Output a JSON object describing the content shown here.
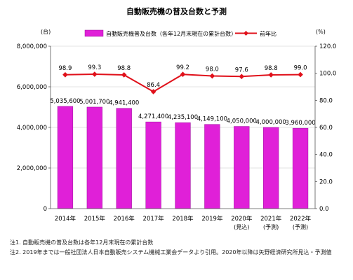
{
  "chart_data": {
    "type": "bar+line",
    "title": "自動販売機の普及台数と予測",
    "left_unit": "(台)",
    "right_unit": "(%)",
    "categories": [
      {
        "label": "2014年",
        "sub": ""
      },
      {
        "label": "2015年",
        "sub": ""
      },
      {
        "label": "2016年",
        "sub": ""
      },
      {
        "label": "2017年",
        "sub": ""
      },
      {
        "label": "2018年",
        "sub": ""
      },
      {
        "label": "2019年",
        "sub": ""
      },
      {
        "label": "2020年",
        "sub": "(見込)"
      },
      {
        "label": "2021年",
        "sub": "(予測)"
      },
      {
        "label": "2022年",
        "sub": "(予測)"
      }
    ],
    "series": [
      {
        "name": "自動販売機普及台数（各年12月末現在の累計台数）",
        "type": "bar",
        "axis": "left",
        "color": "#e020d8",
        "values": [
          5035600,
          5001700,
          4941400,
          4271400,
          4235100,
          4149100,
          4050000,
          4000000,
          3960000
        ],
        "labels": [
          "5,035,600",
          "5,001,700",
          "4,941,400",
          "4,271,400",
          "4,235,100",
          "4,149,100",
          "4,050,000",
          "4,000,000",
          "3,960,000"
        ]
      },
      {
        "name": "前年比",
        "type": "line",
        "axis": "right",
        "color": "#e0101a",
        "values": [
          98.9,
          99.3,
          98.8,
          86.4,
          99.2,
          98.0,
          97.6,
          98.8,
          99.0
        ],
        "labels": [
          "98.9",
          "99.3",
          "98.8",
          "86.4",
          "99.2",
          "98.0",
          "97.6",
          "98.8",
          "99.0"
        ]
      }
    ],
    "left_axis": {
      "ylim": [
        0,
        8000000
      ],
      "ticks": [
        0,
        2000000,
        4000000,
        6000000,
        8000000
      ],
      "tick_labels": [
        "0",
        "2,000,000",
        "4,000,000",
        "6,000,000",
        "8,000,000"
      ]
    },
    "right_axis": {
      "ylim": [
        0,
        120
      ],
      "ticks": [
        0,
        20,
        40,
        60,
        80,
        100,
        120
      ],
      "tick_labels": [
        "0.0",
        "20.0",
        "40.0",
        "60.0",
        "80.0",
        "100.0",
        "120.0"
      ]
    },
    "grid": "horizontal",
    "legend": "top"
  },
  "notes": [
    "注1. 自動販売機の普及台数は各年12月末現在の累計台数",
    "注2. 2019年までは一般社団法人日本自動販売システム機械工業会データより引用。2020年以降は矢野経済研究所見込・予測値"
  ]
}
